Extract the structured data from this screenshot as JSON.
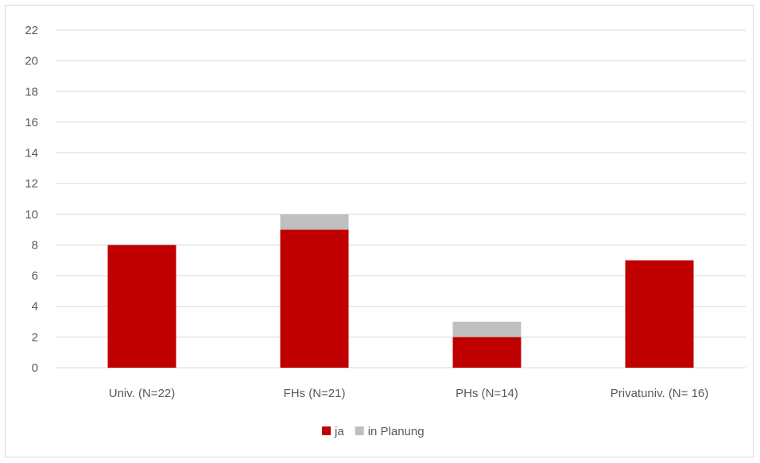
{
  "chart_data": {
    "type": "bar",
    "stacked": true,
    "categories": [
      "Univ. (N=22)",
      "FHs (N=21)",
      "PHs (N=14)",
      "Privatuniv. (N= 16)"
    ],
    "series": [
      {
        "name": "ja",
        "color": "#c00000",
        "values": [
          8,
          9,
          2,
          7
        ]
      },
      {
        "name": "in Planung",
        "color": "#bfbfbf",
        "values": [
          0,
          1,
          1,
          0
        ]
      }
    ],
    "title": "",
    "xlabel": "",
    "ylabel": "",
    "ylim": [
      0,
      22
    ],
    "yticks": [
      0,
      2,
      4,
      6,
      8,
      10,
      12,
      14,
      16,
      18,
      20,
      22
    ],
    "grid": true,
    "gridColor": "#d9d9d9",
    "legend": "bottom"
  }
}
